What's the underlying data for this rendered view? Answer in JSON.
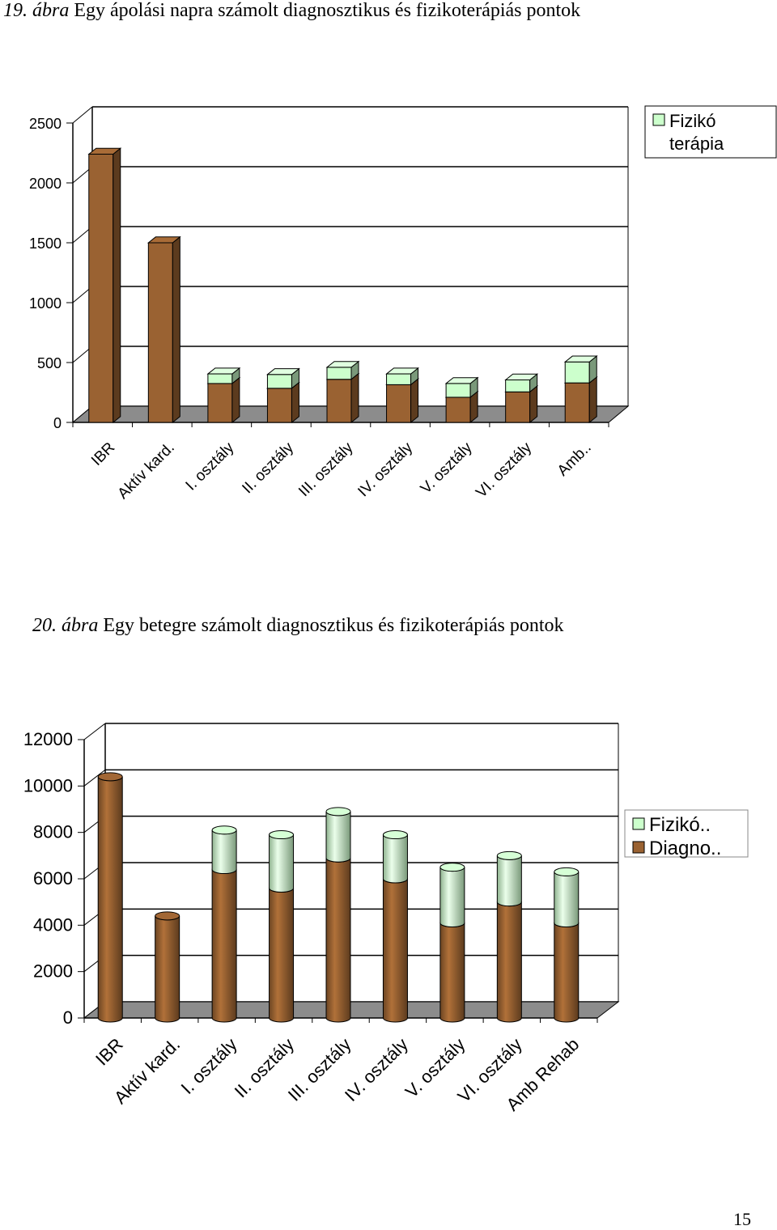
{
  "captions": [
    {
      "number": "19. ábra",
      "text": "Egy ápolási napra számolt diagnosztikus és fizikoterápiás pontok"
    },
    {
      "number": "20. ábra",
      "text": "Egy betegre számolt diagnosztikus és fizikoterápiás pontok"
    }
  ],
  "page_number": "15",
  "colors": {
    "diagno": "#9a6232",
    "fiziko": "#ccffcc",
    "floor": "#8c8c8c",
    "grid": "#000000"
  },
  "chart_data": [
    {
      "type": "bar",
      "stacked": true,
      "style": "3d",
      "categories": [
        "IBR",
        "Aktív kard.",
        "I. osztály",
        "II. osztály",
        "III. osztály",
        "IV. osztály",
        "V. osztály",
        "VI. osztály",
        "Amb.."
      ],
      "series": [
        {
          "name": "",
          "color": "#9a6232",
          "values": [
            2240,
            1500,
            325,
            285,
            360,
            315,
            210,
            255,
            330
          ]
        },
        {
          "name": "Fizikó terápia",
          "color": "#ccffcc",
          "values": [
            0,
            0,
            80,
            115,
            100,
            90,
            115,
            100,
            175
          ]
        }
      ],
      "ylim": [
        0,
        2500
      ],
      "yticks": [
        0,
        500,
        1000,
        1500,
        2000,
        2500
      ],
      "grid": true,
      "legend": "top-right",
      "legend_entries": [
        "Fizikó terápia"
      ]
    },
    {
      "type": "bar",
      "stacked": true,
      "style": "3d-cylinder",
      "categories": [
        "IBR",
        "Aktív kard.",
        "I. osztály",
        "II. osztály",
        "III. osztály",
        "IV. osztály",
        "V. osztály",
        "VI. osztály",
        "Amb Rehab"
      ],
      "series": [
        {
          "name": "Diagno..",
          "color": "#9a6232",
          "values": [
            10400,
            4400,
            6400,
            5600,
            6900,
            6000,
            4100,
            5000,
            4100
          ]
        },
        {
          "name": "Fizikó..",
          "color": "#ccffcc",
          "values": [
            0,
            0,
            1700,
            2300,
            2000,
            1900,
            2400,
            2000,
            2200
          ]
        }
      ],
      "ylim": [
        0,
        12000
      ],
      "yticks": [
        0,
        2000,
        4000,
        6000,
        8000,
        10000,
        12000
      ],
      "grid": true,
      "legend": "right",
      "legend_entries": [
        "Fizikó..",
        "Diagno.."
      ]
    }
  ]
}
